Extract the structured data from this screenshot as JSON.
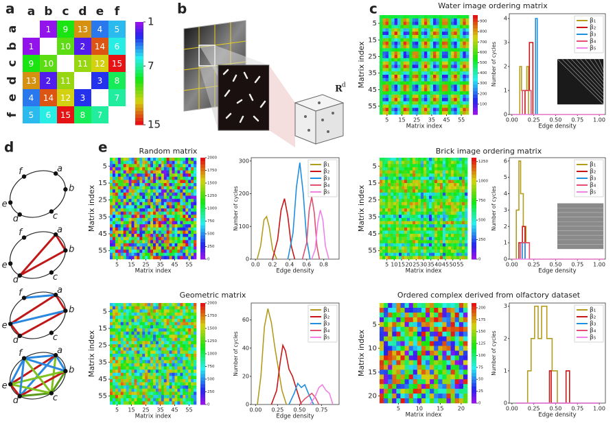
{
  "panel_labels": [
    "a",
    "b",
    "c",
    "d",
    "e"
  ],
  "panel_a": {
    "columns": [
      "a",
      "b",
      "c",
      "d",
      "e",
      "f"
    ],
    "rows": [
      "a",
      "b",
      "c",
      "d",
      "e",
      "f"
    ],
    "matrix": [
      [
        null,
        1,
        9,
        13,
        4,
        5
      ],
      [
        1,
        null,
        10,
        2,
        14,
        6
      ],
      [
        9,
        10,
        null,
        11,
        12,
        15
      ],
      [
        13,
        2,
        11,
        null,
        3,
        8
      ],
      [
        4,
        14,
        12,
        3,
        null,
        7
      ],
      [
        5,
        6,
        15,
        8,
        7,
        null
      ]
    ],
    "clim": [
      1,
      15
    ],
    "colorbar_ticks": [
      1,
      7,
      15
    ]
  },
  "panel_b": {
    "space_label": "R",
    "space_superscript": "d"
  },
  "panel_d": {
    "nodes": [
      "a",
      "b",
      "c",
      "d",
      "e",
      "f"
    ]
  },
  "chart_data": [
    {
      "type": "heatmap",
      "title": "Water image ordering matrix",
      "xlabel": "Matrix index",
      "ylabel": "Matrix index",
      "xlim": [
        0,
        60
      ],
      "ylim": [
        0,
        60
      ],
      "xticks": [
        5,
        15,
        25,
        35,
        45,
        55
      ],
      "yticks": [
        5,
        15,
        25,
        35,
        45,
        55
      ],
      "clim": [
        0,
        960
      ],
      "colorbar_ticks": [
        100,
        200,
        300,
        400,
        500,
        600,
        700,
        800,
        900
      ]
    },
    {
      "type": "line",
      "xlabel": "Edge density",
      "ylabel": "Number of cycles",
      "xlim": [
        -0.03,
        1.07
      ],
      "ylim": [
        0,
        4.2
      ],
      "xticks": [
        {
          "value": 0,
          "label": "0.00"
        },
        {
          "value": 0.25,
          "label": "0.25"
        },
        {
          "value": 0.5,
          "label": "0.50"
        },
        {
          "value": 0.75,
          "label": "0.75"
        },
        {
          "value": 1,
          "label": "1.00"
        }
      ],
      "yticks": [
        0,
        1,
        2,
        3,
        4
      ],
      "series": [
        {
          "name": "β₁",
          "color": "#b49b1e",
          "x": [
            0,
            0.09,
            0.09,
            0.11,
            0.11,
            0.17,
            0.17,
            0.19,
            0.19,
            1.05
          ],
          "values": [
            0,
            0,
            2,
            2,
            1,
            1,
            2,
            2,
            0,
            0
          ]
        },
        {
          "name": "β₂",
          "color": "#c81414",
          "x": [
            0.15,
            0.15,
            0.2,
            0.2,
            0.24,
            0.24
          ],
          "values": [
            0,
            1,
            1,
            3,
            3,
            0
          ]
        },
        {
          "name": "β₃",
          "color": "#1e8ee0",
          "x": [
            0.27,
            0.27,
            0.29,
            0.29
          ],
          "values": [
            0,
            4,
            4,
            0
          ]
        },
        {
          "name": "β₄",
          "color": "#e0506e",
          "x": [
            0.12,
            0.12,
            0.22,
            0.22
          ],
          "values": [
            0,
            1,
            1,
            0
          ]
        },
        {
          "name": "β₅",
          "color": "#ee82e6",
          "x": [
            0,
            1.05
          ],
          "values": [
            0,
            0
          ]
        }
      ]
    },
    {
      "type": "heatmap",
      "title": "Random matrix",
      "xlabel": "Matrix index",
      "ylabel": "Matrix index",
      "xlim": [
        0,
        60
      ],
      "ylim": [
        0,
        60
      ],
      "xticks": [
        5,
        15,
        25,
        35,
        45,
        55
      ],
      "yticks": [
        5,
        15,
        25,
        35,
        45,
        55
      ],
      "clim": [
        0,
        2000
      ],
      "colorbar_ticks": [
        0,
        250,
        500,
        750,
        1000,
        1250,
        1500,
        1750,
        2000
      ]
    },
    {
      "type": "line",
      "xlabel": "Edge density",
      "ylabel": "Number of cycles",
      "xlim": [
        -0.05,
        0.98
      ],
      "ylim": [
        0,
        310
      ],
      "xticks": [
        {
          "value": 0,
          "label": "0.0"
        },
        0.2,
        0.4,
        0.6,
        0.8
      ],
      "yticks": [
        0,
        100,
        200,
        300
      ],
      "series": [
        {
          "name": "β₁",
          "color": "#b49b1e",
          "x": [
            0.02,
            0.06,
            0.1,
            0.13,
            0.16,
            0.2,
            0.25
          ],
          "values": [
            0,
            40,
            120,
            130,
            100,
            30,
            0
          ]
        },
        {
          "name": "β₂",
          "color": "#c81414",
          "x": [
            0.2,
            0.26,
            0.3,
            0.34,
            0.38,
            0.42,
            0.46
          ],
          "values": [
            0,
            60,
            150,
            185,
            130,
            40,
            0
          ]
        },
        {
          "name": "β₃",
          "color": "#1e8ee0",
          "x": [
            0.38,
            0.44,
            0.48,
            0.52,
            0.56,
            0.6,
            0.64
          ],
          "values": [
            0,
            80,
            220,
            295,
            200,
            60,
            0
          ]
        },
        {
          "name": "β₄",
          "color": "#e0506e",
          "x": [
            0.55,
            0.6,
            0.63,
            0.66,
            0.69,
            0.72,
            0.75
          ],
          "values": [
            0,
            50,
            150,
            190,
            140,
            40,
            0
          ]
        },
        {
          "name": "β₅",
          "color": "#ee82e6",
          "x": [
            0.66,
            0.7,
            0.73,
            0.76,
            0.79,
            0.82,
            0.86
          ],
          "values": [
            0,
            30,
            110,
            150,
            120,
            40,
            0
          ]
        }
      ]
    },
    {
      "type": "heatmap",
      "title": "Brick image ordering matrix",
      "xlabel": "Matrix index",
      "ylabel": "Matrix index",
      "xlim": [
        0,
        60
      ],
      "ylim": [
        0,
        60
      ],
      "xticks": [
        5,
        10,
        15,
        20,
        25,
        30,
        35,
        40,
        45,
        50,
        55
      ],
      "yticks": [
        5,
        15,
        25,
        35,
        45,
        55
      ],
      "clim": [
        0,
        1300
      ],
      "colorbar_ticks": [
        0,
        250,
        500,
        750,
        1000,
        1250
      ]
    },
    {
      "type": "line",
      "xlabel": "Edge density",
      "ylabel": "Number of cycles",
      "xlim": [
        -0.03,
        1.07
      ],
      "ylim": [
        0,
        6.2
      ],
      "xticks": [
        {
          "value": 0,
          "label": "0.00"
        },
        {
          "value": 0.25,
          "label": "0.25"
        },
        {
          "value": 0.5,
          "label": "0.50"
        },
        {
          "value": 0.75,
          "label": "0.75"
        },
        {
          "value": 1,
          "label": "1.00"
        }
      ],
      "yticks": [
        0,
        1,
        2,
        3,
        4,
        5,
        6
      ],
      "series": [
        {
          "name": "β₁",
          "color": "#b49b1e",
          "x": [
            0,
            0.05,
            0.05,
            0.08,
            0.08,
            0.1,
            0.1,
            0.13,
            0.13,
            0.16,
            0.16,
            0.2,
            0.2,
            1.05
          ],
          "values": [
            0,
            0,
            3,
            3,
            6,
            6,
            4,
            4,
            2,
            2,
            1,
            1,
            0,
            0
          ]
        },
        {
          "name": "β₂",
          "color": "#c81414",
          "x": [
            0.08,
            0.08,
            0.12,
            0.12,
            0.15,
            0.15
          ],
          "values": [
            0,
            1,
            1,
            2,
            2,
            0
          ]
        },
        {
          "name": "β₃",
          "color": "#1e8ee0",
          "x": [
            0.12,
            0.12,
            0.15,
            0.15
          ],
          "values": [
            0,
            1,
            1,
            0
          ]
        },
        {
          "name": "β₄",
          "color": "#e0506e",
          "x": [
            0.1,
            0.1,
            0.2,
            0.2
          ],
          "values": [
            0,
            1,
            1,
            0
          ]
        },
        {
          "name": "β₅",
          "color": "#ee82e6",
          "x": [
            0,
            1.05
          ],
          "values": [
            0,
            0
          ]
        }
      ]
    },
    {
      "type": "heatmap",
      "title": "Geometric matrix",
      "xlabel": "Matrix index",
      "ylabel": "Matrix index",
      "xlim": [
        0,
        60
      ],
      "ylim": [
        0,
        60
      ],
      "xticks": [
        5,
        15,
        25,
        35,
        45,
        55
      ],
      "yticks": [
        5,
        15,
        25,
        35,
        45,
        55
      ],
      "clim": [
        0,
        2000
      ],
      "colorbar_ticks": [
        0,
        250,
        500,
        750,
        1000,
        1250,
        1500,
        1750,
        2000
      ]
    },
    {
      "type": "line",
      "xlabel": "Edge density",
      "ylabel": "Number of cycles",
      "xlim": [
        -0.05,
        0.95
      ],
      "ylim": [
        0,
        72
      ],
      "xticks": [
        {
          "value": 0,
          "label": "0.00"
        },
        {
          "value": 0.25,
          "label": "0.25"
        },
        {
          "value": 0.5,
          "label": "0.50"
        },
        {
          "value": 0.75,
          "label": "0.75"
        }
      ],
      "yticks": [
        0,
        20,
        40,
        60
      ],
      "series": [
        {
          "name": "β₁",
          "color": "#b49b1e",
          "x": [
            0.02,
            0.06,
            0.1,
            0.14,
            0.18,
            0.22,
            0.26,
            0.3,
            0.35
          ],
          "values": [
            0,
            20,
            55,
            68,
            58,
            40,
            25,
            10,
            0
          ]
        },
        {
          "name": "β₂",
          "color": "#c81414",
          "x": [
            0.18,
            0.24,
            0.28,
            0.31,
            0.34,
            0.38,
            0.42,
            0.48,
            0.52
          ],
          "values": [
            0,
            10,
            30,
            42,
            38,
            25,
            20,
            8,
            0
          ]
        },
        {
          "name": "β₃",
          "color": "#1e8ee0",
          "x": [
            0.38,
            0.44,
            0.48,
            0.52,
            0.56,
            0.6,
            0.66
          ],
          "values": [
            0,
            8,
            15,
            12,
            14,
            8,
            0
          ]
        },
        {
          "name": "β₄",
          "color": "#e0506e",
          "x": [
            0.5,
            0.56,
            0.6,
            0.64,
            0.68,
            0.72
          ],
          "values": [
            0,
            4,
            6,
            8,
            5,
            0
          ]
        },
        {
          "name": "β₅",
          "color": "#ee82e6",
          "x": [
            0.62,
            0.68,
            0.72,
            0.76,
            0.8,
            0.84,
            0.88
          ],
          "values": [
            0,
            6,
            12,
            14,
            10,
            8,
            0
          ]
        }
      ]
    },
    {
      "type": "heatmap",
      "title": "Ordered complex derived from olfactory dataset",
      "xlabel": "Matrix index",
      "ylabel": "Matrix index",
      "xlim": [
        0.5,
        21.5
      ],
      "ylim": [
        0.5,
        21.5
      ],
      "xticks": [
        5,
        10,
        15,
        20
      ],
      "yticks": [
        5,
        10,
        15,
        20
      ],
      "clim": [
        0,
        210
      ],
      "colorbar_ticks": [
        0,
        25,
        50,
        75,
        100,
        125,
        150,
        175,
        200
      ]
    },
    {
      "type": "line",
      "xlabel": "Edge density",
      "ylabel": "Number of cycles",
      "xlim": [
        -0.03,
        1.07
      ],
      "ylim": [
        0,
        3.1
      ],
      "xticks": [
        {
          "value": 0,
          "label": "0.00"
        },
        {
          "value": 0.25,
          "label": "0.25"
        },
        {
          "value": 0.5,
          "label": "0.50"
        },
        {
          "value": 0.75,
          "label": "0.75"
        },
        {
          "value": 1,
          "label": "1.00"
        }
      ],
      "yticks": [
        0,
        1,
        2,
        3
      ],
      "series": [
        {
          "name": "β₁",
          "color": "#b49b1e",
          "x": [
            0.05,
            0.18,
            0.18,
            0.22,
            0.22,
            0.26,
            0.26,
            0.3,
            0.3,
            0.34,
            0.34,
            0.4,
            0.4,
            0.46,
            0.46,
            0.52,
            0.52,
            1.0
          ],
          "values": [
            0,
            0,
            1,
            1,
            2,
            2,
            3,
            3,
            2,
            2,
            3,
            3,
            2,
            2,
            1,
            1,
            0,
            0
          ]
        },
        {
          "name": "β₂",
          "color": "#c81414",
          "x": [
            0.43,
            0.43,
            0.45,
            0.45,
            0.62,
            0.62,
            0.66,
            0.66
          ],
          "values": [
            0,
            1,
            1,
            0,
            0,
            1,
            1,
            0
          ]
        },
        {
          "name": "β₃",
          "color": "#1e8ee0",
          "x": [
            0.05,
            1.0
          ],
          "values": [
            0,
            0
          ]
        },
        {
          "name": "β₄",
          "color": "#e0506e",
          "x": [
            0.05,
            1.0
          ],
          "values": [
            0,
            0
          ]
        },
        {
          "name": "β₅",
          "color": "#ee82e6",
          "x": [
            0.05,
            1.0
          ],
          "values": [
            0,
            0
          ]
        }
      ]
    }
  ]
}
